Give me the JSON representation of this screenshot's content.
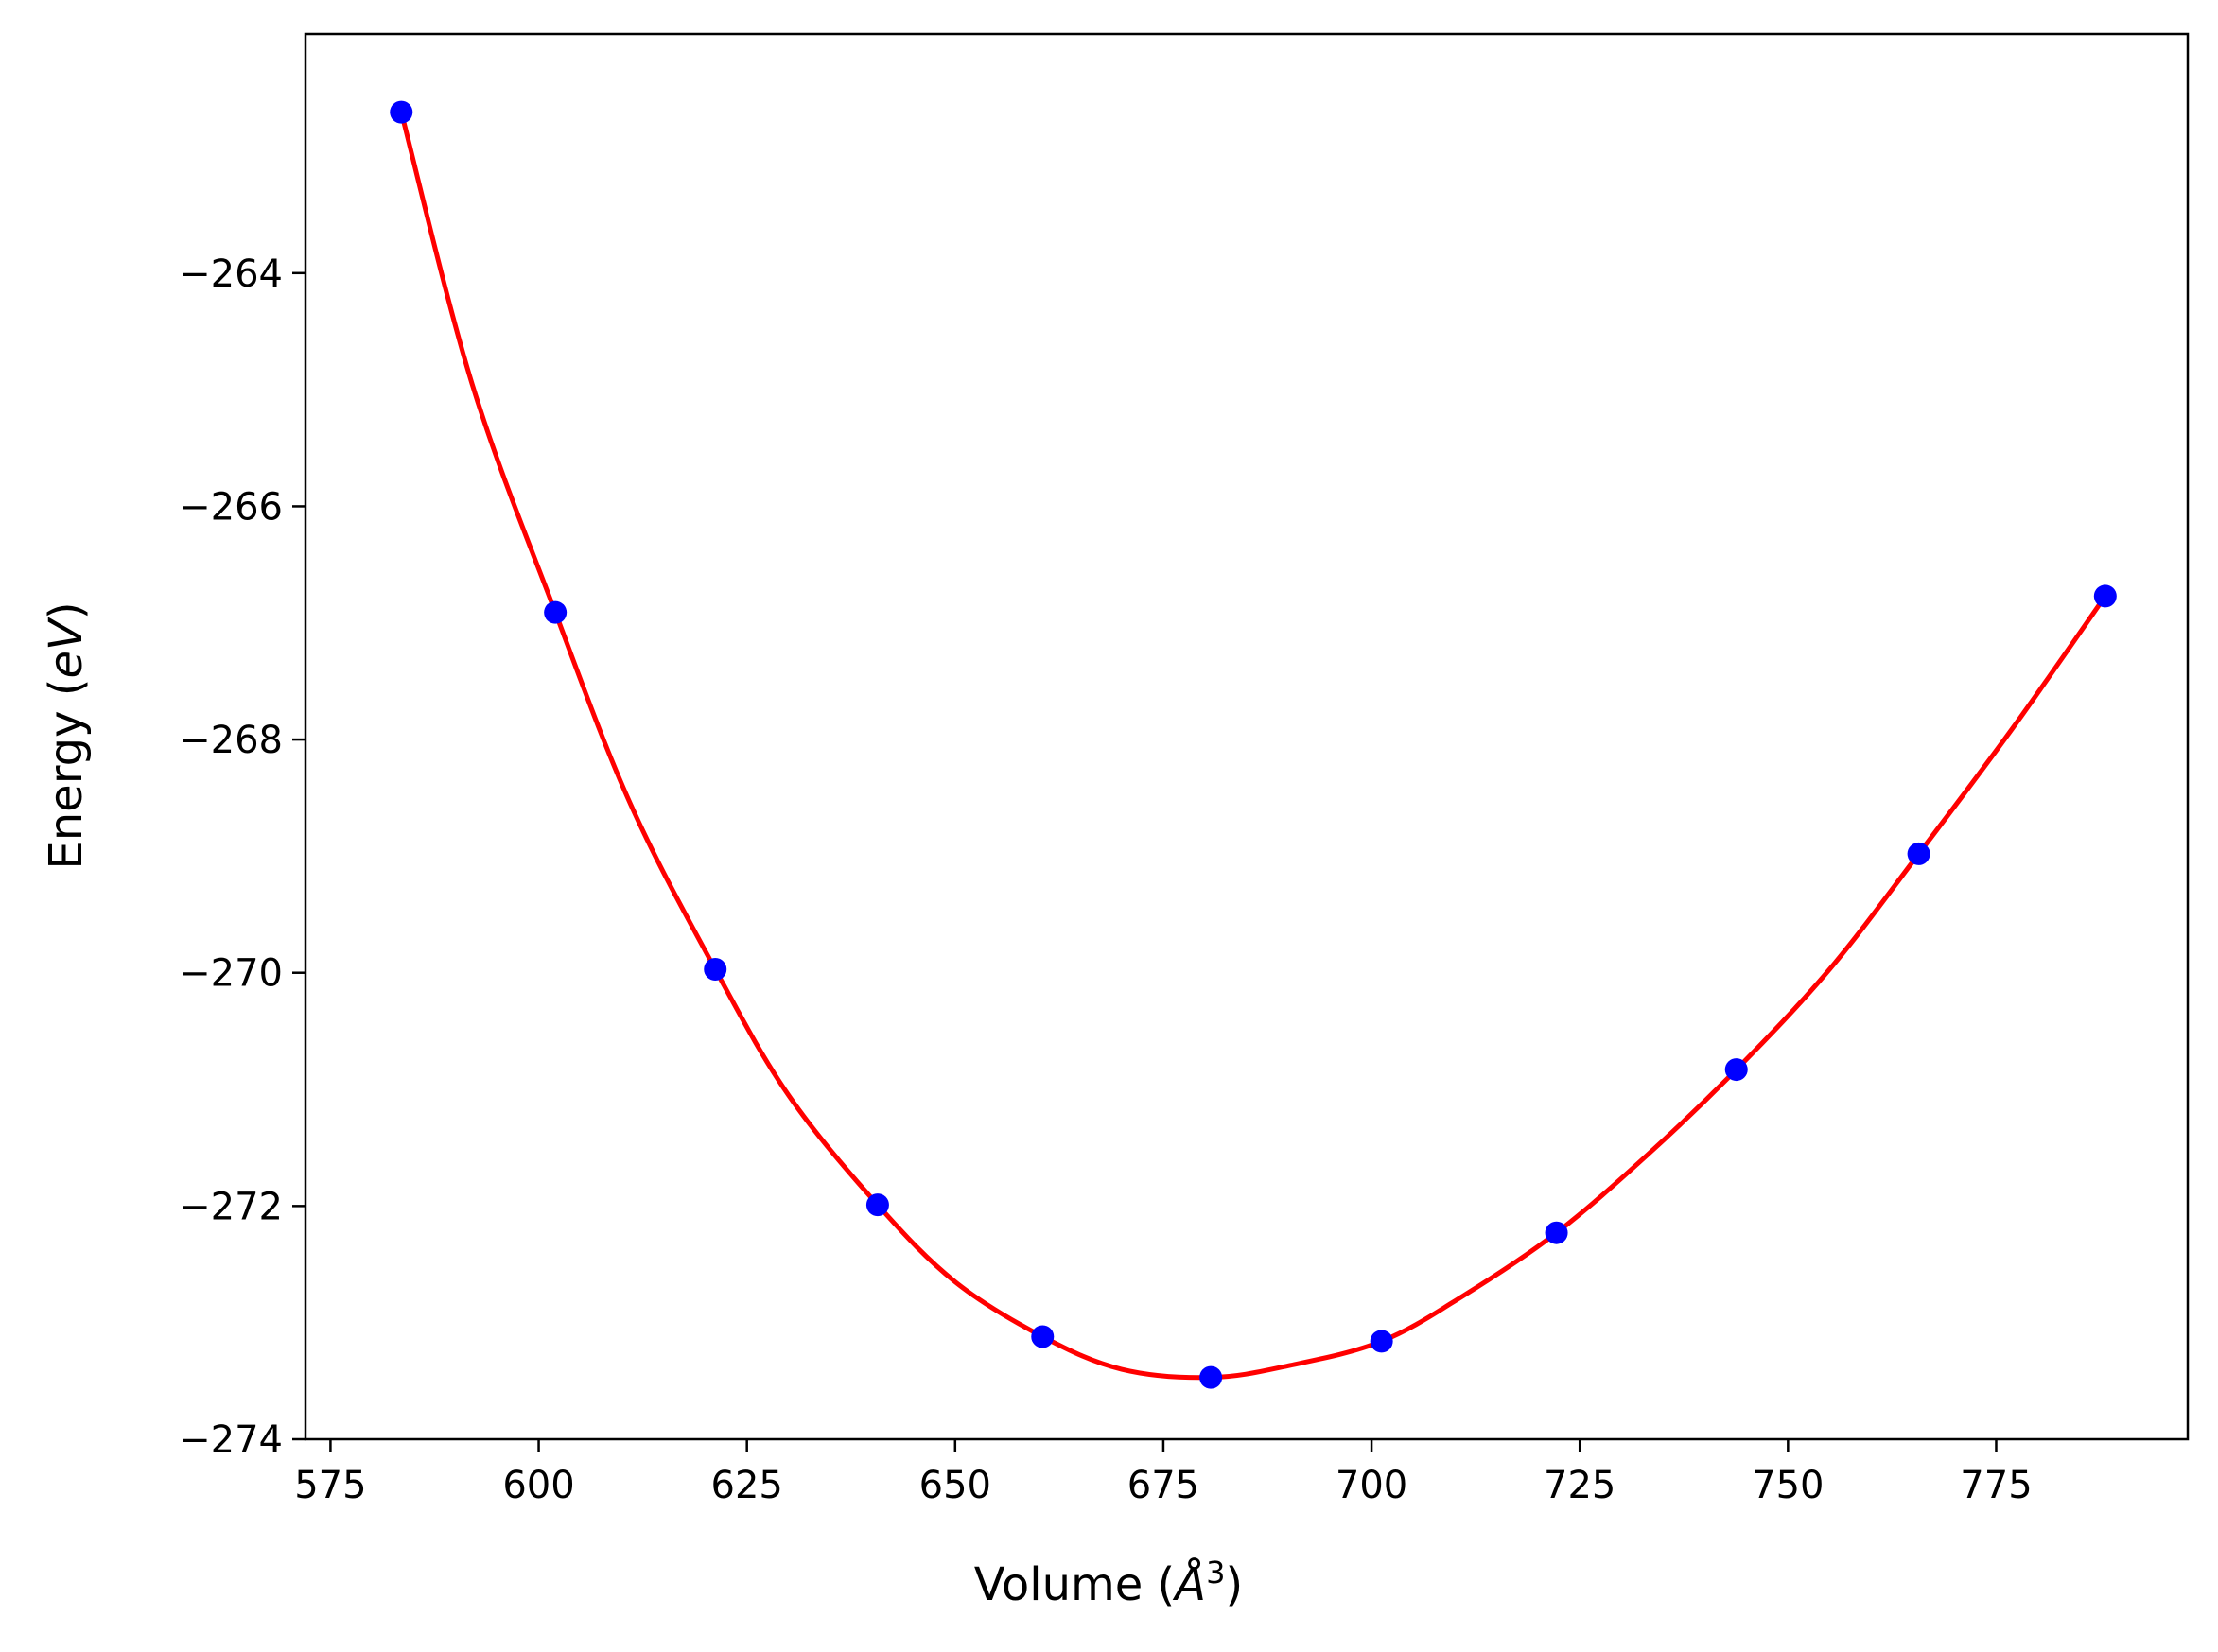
{
  "chart_data": {
    "type": "scatter",
    "xlabel_main": "Volume (",
    "xlabel_unit": "Å",
    "xlabel_sup": "3",
    "xlabel_close": ")",
    "ylabel_main": "Energy (",
    "ylabel_unit": "eV",
    "ylabel_close": ")",
    "xlim": [
      572,
      798
    ],
    "ylim": [
      -274,
      -261.95
    ],
    "xticks": [
      575,
      600,
      625,
      650,
      675,
      700,
      725,
      750,
      775
    ],
    "yticks": [
      -264,
      -266,
      -268,
      -270,
      -272,
      -274
    ],
    "xtick_labels": [
      "575",
      "600",
      "625",
      "650",
      "675",
      "700",
      "725",
      "750",
      "775"
    ],
    "ytick_labels": [
      "−264",
      "−266",
      "−268",
      "−270",
      "−272",
      "−274"
    ],
    "grid": false,
    "series": [
      {
        "type": "scatter",
        "color": "#0000ff",
        "x": [
          583.5,
          602.0,
          621.2,
          640.7,
          660.5,
          680.7,
          701.2,
          722.2,
          743.8,
          765.7,
          788.1
        ],
        "y": [
          -262.62,
          -266.91,
          -269.97,
          -271.99,
          -273.12,
          -273.47,
          -273.16,
          -272.23,
          -270.83,
          -268.98,
          -266.77
        ]
      },
      {
        "type": "line",
        "color": "#ff0000",
        "x": [
          583.5,
          592.0,
          602.0,
          611.0,
          621.2,
          630.0,
          640.7,
          650.0,
          660.5,
          670.0,
          680.7,
          690.0,
          701.2,
          711.0,
          722.2,
          733.0,
          743.8,
          755.0,
          765.7,
          777.0,
          788.1
        ],
        "y": [
          -262.62,
          -264.95,
          -266.91,
          -268.55,
          -269.97,
          -271.05,
          -271.99,
          -272.65,
          -273.12,
          -273.4,
          -273.47,
          -273.37,
          -273.16,
          -272.77,
          -272.23,
          -271.57,
          -270.83,
          -269.97,
          -268.98,
          -267.9,
          -266.77
        ]
      }
    ]
  }
}
